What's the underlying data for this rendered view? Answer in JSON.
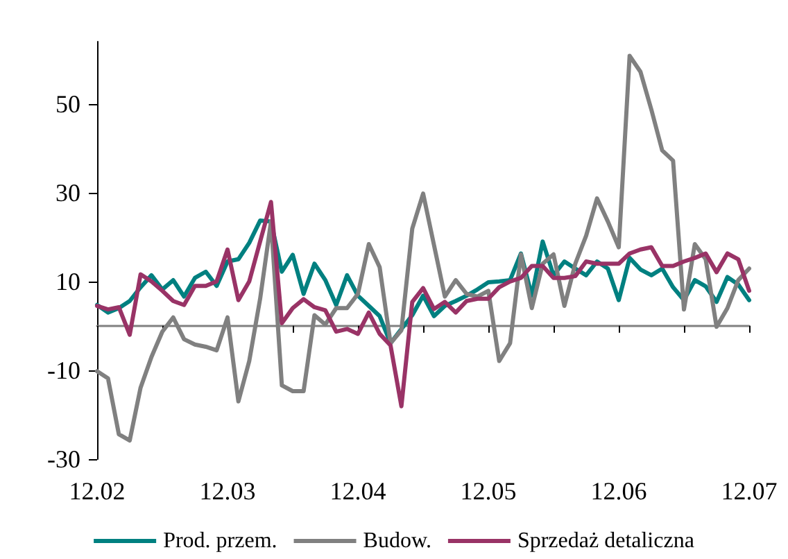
{
  "chart_data": {
    "type": "line",
    "categories": [
      "12.02",
      null,
      null,
      null,
      null,
      null,
      null,
      null,
      null,
      null,
      null,
      null,
      "12.03",
      null,
      null,
      null,
      null,
      null,
      null,
      null,
      null,
      null,
      null,
      null,
      "12.04",
      null,
      null,
      null,
      null,
      null,
      null,
      null,
      null,
      null,
      null,
      null,
      "12.05",
      null,
      null,
      null,
      null,
      null,
      null,
      null,
      null,
      null,
      null,
      null,
      "12.06",
      null,
      null,
      null,
      null,
      null,
      null,
      null,
      null,
      null,
      null,
      null,
      "12.07"
    ],
    "series": [
      {
        "name": "Prod. przem.",
        "color": "#008080",
        "values": [
          4.7,
          3,
          4,
          5.6,
          8.7,
          11.4,
          8.2,
          10.3,
          6.6,
          10.8,
          12.2,
          9,
          14.5,
          15,
          18.7,
          23.7,
          23.5,
          12.2,
          16,
          7.2,
          14,
          10.3,
          4.7,
          11.4,
          6.8,
          4.5,
          2.2,
          -3.9,
          -0.7,
          2.4,
          6.8,
          2.2,
          4.5,
          5.6,
          6.8,
          8.2,
          9.8,
          10,
          10.3,
          16.3,
          6.8,
          19,
          11.4,
          14.5,
          12.9,
          11.4,
          14.5,
          12.9,
          5.8,
          15.3,
          12.7,
          11.4,
          12.9,
          8.7,
          5.8,
          10.3,
          8.9,
          5.4,
          11,
          9.3,
          5.8
        ]
      },
      {
        "name": "Budow.",
        "color": "#808080",
        "values": [
          -10.2,
          -11.8,
          -24.4,
          -25.8,
          -13.9,
          -7,
          -1.3,
          1.9,
          -3,
          -4.2,
          -4.7,
          -5.5,
          1.9,
          -17,
          -7.9,
          6.1,
          23.5,
          -13.4,
          -14.7,
          -14.7,
          2.4,
          0.3,
          4,
          4,
          7.2,
          18.4,
          13.2,
          -3.9,
          -1,
          21.9,
          29.8,
          18.2,
          6.6,
          10.3,
          7.2,
          6.6,
          7.9,
          -7.9,
          -3.9,
          16.1,
          4,
          14,
          16.1,
          4.5,
          14,
          20.3,
          28.7,
          23.5,
          17.7,
          60.8,
          57.2,
          48.7,
          39.5,
          37.2,
          3.7,
          18.4,
          15,
          -0.2,
          4,
          10.3,
          12.9
        ]
      },
      {
        "name": "Sprzedaż detaliczna",
        "color": "#993366",
        "values": [
          4.5,
          3.7,
          4.2,
          -2,
          11.6,
          10,
          7.9,
          5.6,
          4.7,
          9,
          9,
          10,
          17.2,
          5.8,
          10,
          19,
          27.9,
          0.6,
          4,
          6,
          4.2,
          3.5,
          -1.3,
          -0.7,
          -1.8,
          3,
          -1.8,
          -4.4,
          -18.1,
          5.4,
          8.5,
          3.8,
          5.4,
          3,
          5.6,
          6.1,
          6.1,
          8.7,
          10,
          10.8,
          13.5,
          13.5,
          10.8,
          10.8,
          11.2,
          14.5,
          14,
          14,
          14,
          16.3,
          17.2,
          17.7,
          13.5,
          13.5,
          14.5,
          15.3,
          16.3,
          12.1,
          16.3,
          15,
          7.9
        ]
      }
    ],
    "ylim": [
      -30,
      64
    ],
    "yticks": [
      -30,
      -10,
      10,
      30,
      50
    ],
    "grid": false,
    "legend": "bottom",
    "line_style": "solid"
  }
}
